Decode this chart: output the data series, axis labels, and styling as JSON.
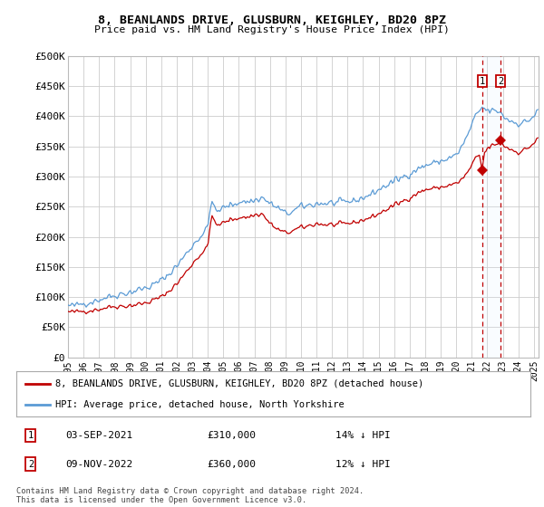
{
  "title": "8, BEANLANDS DRIVE, GLUSBURN, KEIGHLEY, BD20 8PZ",
  "subtitle": "Price paid vs. HM Land Registry's House Price Index (HPI)",
  "ylim": [
    0,
    500000
  ],
  "yticks": [
    0,
    50000,
    100000,
    150000,
    200000,
    250000,
    300000,
    350000,
    400000,
    450000,
    500000
  ],
  "ytick_labels": [
    "£0",
    "£50K",
    "£100K",
    "£150K",
    "£200K",
    "£250K",
    "£300K",
    "£350K",
    "£400K",
    "£450K",
    "£500K"
  ],
  "hpi_color": "#5b9bd5",
  "price_color": "#c00000",
  "vline_color": "#c00000",
  "shade_color": "#ddeeff",
  "bg_color": "#ffffff",
  "plot_bg_color": "#ffffff",
  "grid_color": "#cccccc",
  "legend_label_price": "8, BEANLANDS DRIVE, GLUSBURN, KEIGHLEY, BD20 8PZ (detached house)",
  "legend_label_hpi": "HPI: Average price, detached house, North Yorkshire",
  "annotation1_date": "03-SEP-2021",
  "annotation1_price": "£310,000",
  "annotation1_pct": "14% ↓ HPI",
  "annotation2_date": "09-NOV-2022",
  "annotation2_price": "£360,000",
  "annotation2_pct": "12% ↓ HPI",
  "footer": "Contains HM Land Registry data © Crown copyright and database right 2024.\nThis data is licensed under the Open Government Licence v3.0.",
  "sale1_year": 2021.67,
  "sale2_year": 2022.85,
  "sale1_value": 310000,
  "sale2_value": 360000,
  "xlim_start": 1995,
  "xlim_end": 2025.3
}
